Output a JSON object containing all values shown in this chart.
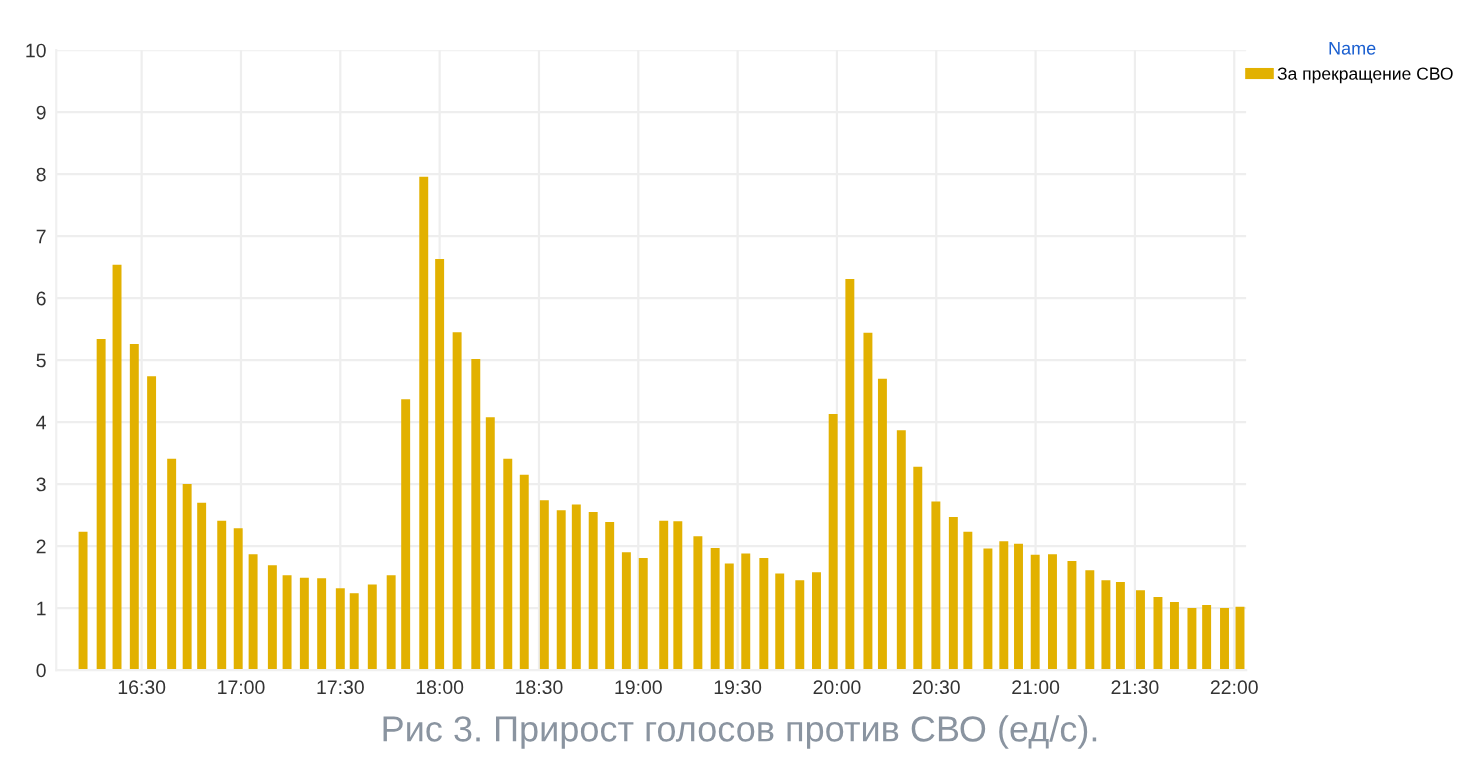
{
  "chart_data": {
    "type": "bar",
    "x": [
      16.205,
      16.296,
      16.376,
      16.463,
      16.55,
      16.651,
      16.729,
      16.802,
      16.903,
      16.986,
      17.061,
      17.158,
      17.232,
      17.319,
      17.406,
      17.5,
      17.57,
      17.661,
      17.756,
      17.829,
      17.92,
      18.0,
      18.088,
      18.182,
      18.255,
      18.343,
      18.426,
      18.527,
      18.612,
      18.688,
      18.773,
      18.856,
      18.94,
      19.025,
      19.128,
      19.199,
      19.3,
      19.387,
      19.458,
      19.541,
      19.632,
      19.712,
      19.813,
      19.897,
      19.981,
      20.065,
      20.156,
      20.229,
      20.324,
      20.407,
      20.498,
      20.586,
      20.659,
      20.76,
      20.84,
      20.914,
      20.998,
      21.085,
      21.183,
      21.273,
      21.354,
      21.427,
      21.528,
      21.616,
      21.699,
      21.787,
      21.861,
      21.951,
      22.029
    ],
    "series": [
      {
        "name": "За прекращение СВО",
        "color": "#e2b100",
        "values": [
          2.23,
          5.34,
          6.54,
          5.26,
          4.74,
          3.41,
          3.0,
          2.7,
          2.41,
          2.29,
          1.87,
          1.69,
          1.53,
          1.49,
          1.48,
          1.32,
          1.24,
          1.38,
          1.53,
          4.37,
          7.96,
          6.63,
          5.45,
          5.02,
          4.08,
          3.41,
          3.15,
          2.74,
          2.58,
          2.67,
          2.55,
          2.39,
          1.9,
          1.81,
          2.41,
          2.4,
          2.16,
          1.97,
          1.72,
          1.88,
          1.81,
          1.56,
          1.45,
          1.58,
          4.13,
          6.31,
          5.44,
          4.7,
          3.87,
          3.28,
          2.72,
          2.47,
          2.23,
          1.96,
          2.08,
          2.04,
          1.86,
          1.87,
          1.76,
          1.61,
          1.45,
          1.42,
          1.29,
          1.18,
          1.1,
          1.0,
          1.05,
          1.0,
          1.02
        ]
      }
    ],
    "xlim": [
      16.07,
      22.06
    ],
    "xticks": [
      {
        "value": 16.5,
        "label": "16:30"
      },
      {
        "value": 17,
        "label": "17:00"
      },
      {
        "value": 17.5,
        "label": "17:30"
      },
      {
        "value": 18,
        "label": "18:00"
      },
      {
        "value": 18.5,
        "label": "18:30"
      },
      {
        "value": 19,
        "label": "19:00"
      },
      {
        "value": 19.5,
        "label": "19:30"
      },
      {
        "value": 20,
        "label": "20:00"
      },
      {
        "value": 20.5,
        "label": "20:30"
      },
      {
        "value": 21,
        "label": "21:00"
      },
      {
        "value": 21.5,
        "label": "21:30"
      },
      {
        "value": 22,
        "label": "22:00"
      }
    ],
    "ylim": [
      0,
      10
    ],
    "yticks": [
      0,
      1,
      2,
      3,
      4,
      5,
      6,
      7,
      8,
      9,
      10
    ],
    "grid": true,
    "legend": "top right",
    "legend_title": "Name",
    "annotations": [
      "Рис 3. Прирост голосов против СВО (ед/с)."
    ]
  }
}
